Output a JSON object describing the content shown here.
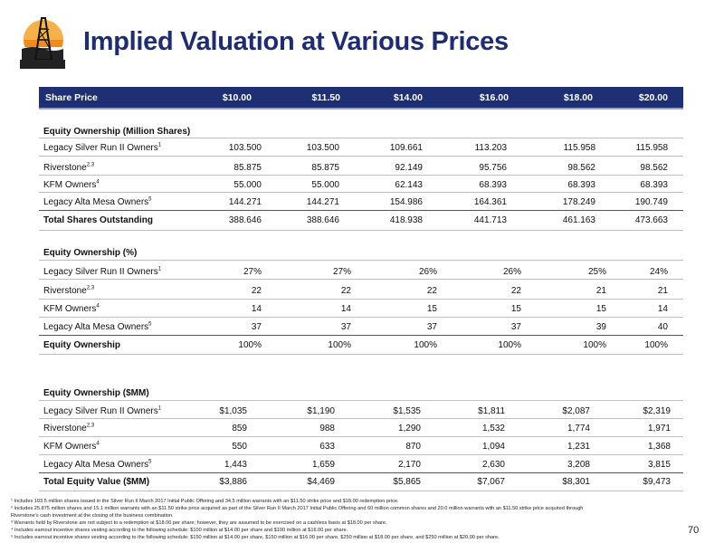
{
  "title": "Implied Valuation at Various Prices",
  "page_number": "70",
  "header": {
    "label": "Share Price",
    "prices": [
      "$10.00",
      "$11.50",
      "$14.00",
      "$16.00",
      "$18.00",
      "$20.00"
    ]
  },
  "sections": [
    {
      "heading": "Equity Ownership (Million Shares)",
      "rows": [
        {
          "label": "Legacy Silver Run II Owners",
          "sup": "1",
          "values": [
            "103.500",
            "103.500",
            "109.661",
            "113.203",
            "115.958",
            "115.958"
          ]
        },
        {
          "label": "Riverstone",
          "sup": "2,3",
          "values": [
            "85.875",
            "85.875",
            "92.149",
            "95.756",
            "98.562",
            "98.562"
          ]
        },
        {
          "label": "KFM Owners",
          "sup": "4",
          "values": [
            "55.000",
            "55.000",
            "62.143",
            "68.393",
            "68.393",
            "68.393"
          ]
        },
        {
          "label": "Legacy Alta Mesa Owners",
          "sup": "5",
          "values": [
            "144.271",
            "144.271",
            "154.986",
            "164.361",
            "178.249",
            "190.749"
          ]
        }
      ],
      "total": {
        "label": "Total Shares Outstanding",
        "values": [
          "388.646",
          "388.646",
          "418.938",
          "441.713",
          "461.163",
          "473.663"
        ]
      }
    },
    {
      "heading": "Equity Ownership (%)",
      "rows": [
        {
          "label": "Legacy Silver Run II Owners",
          "sup": "1",
          "values": [
            "27%",
            "27%",
            "26%",
            "26%",
            "25%",
            "24%"
          ]
        },
        {
          "label": "Riverstone",
          "sup": "2,3",
          "values": [
            "22",
            "22",
            "22",
            "22",
            "21",
            "21"
          ]
        },
        {
          "label": "KFM Owners",
          "sup": "4",
          "values": [
            "14",
            "14",
            "15",
            "15",
            "15",
            "14"
          ]
        },
        {
          "label": "Legacy Alta Mesa Owners",
          "sup": "5",
          "values": [
            "37",
            "37",
            "37",
            "37",
            "39",
            "40"
          ]
        }
      ],
      "total": {
        "label": "Equity Ownership",
        "values": [
          "100%",
          "100%",
          "100%",
          "100%",
          "100%",
          "100%"
        ]
      }
    },
    {
      "heading": "Equity Ownership ($MM)",
      "rows": [
        {
          "label": "Legacy Silver Run II Owners",
          "sup": "1",
          "values": [
            "$1,035",
            "$1,190",
            "$1,535",
            "$1,811",
            "$2,087",
            "$2,319"
          ]
        },
        {
          "label": "Riverstone",
          "sup": "2,3",
          "values": [
            "859",
            "988",
            "1,290",
            "1,532",
            "1,774",
            "1,971"
          ]
        },
        {
          "label": "KFM Owners",
          "sup": "4",
          "values": [
            "550",
            "633",
            "870",
            "1,094",
            "1,231",
            "1,368"
          ]
        },
        {
          "label": "Legacy Alta Mesa Owners",
          "sup": "5",
          "values": [
            "1,443",
            "1,659",
            "2,170",
            "2,630",
            "3,208",
            "3,815"
          ]
        }
      ],
      "total": {
        "label": "Total Equity Value ($MM)",
        "values": [
          "$3,886",
          "$4,469",
          "$5,865",
          "$7,067",
          "$8,301",
          "$9,473"
        ]
      }
    }
  ],
  "footnotes": [
    "¹ Includes 103.5 million shares issued in the Silver Run II March 2017 Initial Public Offering and 34.5 million warrants with an $11.50 strike price and $18.00 redemption price.",
    "² Includes 25.875 million shares and 15.1 million warrants with an $11.50 strike price acquired as part of the Silver Run II March 2017 Initial Public Offering and 60 million common shares and 20.0 million warrants with an $11.50 strike price acquired through",
    "Riverstone’s cash investment at the closing of the business combination.",
    "³ Warrants held by Riverstone are not subject to a redemption at $18.00 per share; however, they are assumed to be exercised on a cashless basis at $18.00 per share.",
    "⁴ Includes earnout incentive shares vesting according to the following schedule: $100 million at $14.00 per share and $100 million at $16.00 per share.",
    "⁵ Includes earnout incentive shares vesting according to the following schedule: $150 million at $14.00 per share, $150 million at $16.00 per share, $250 million at $18.00 per share, and $250 million at $20.00 per share."
  ]
}
